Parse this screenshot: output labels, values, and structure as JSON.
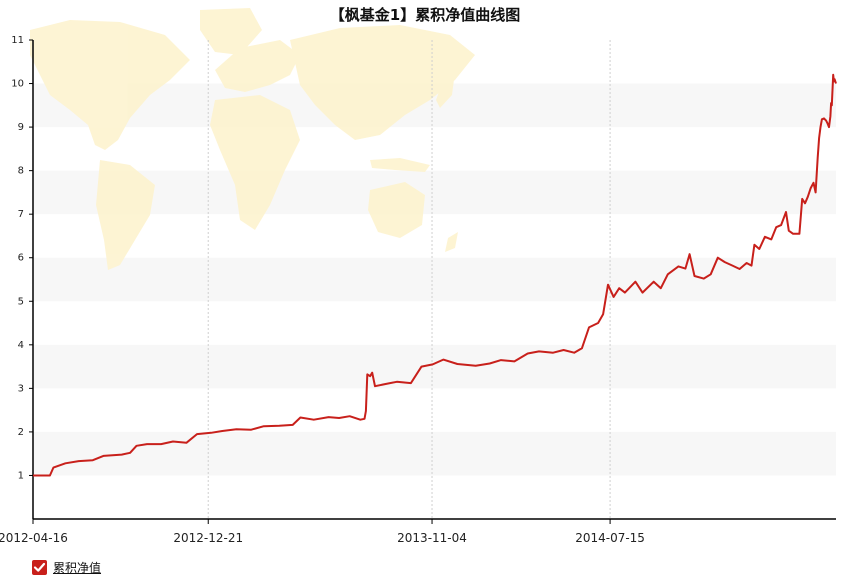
{
  "chart_data": {
    "type": "line",
    "title": "【枫基金1】累积净值曲线图",
    "xlabel": "",
    "ylabel": "",
    "ylim": [
      0,
      11
    ],
    "y_ticks": [
      1,
      2,
      3,
      4,
      5,
      6,
      7,
      8,
      9,
      10,
      11
    ],
    "x_ticks": [
      "2012-04-16",
      "2012-12-21",
      "2013-11-04",
      "2014-07-15"
    ],
    "x_range": [
      "2012-04-16",
      "2015-06-01"
    ],
    "grid": "alternating horizontal bands, dotted vertical lines",
    "legend": "bottom-left",
    "colors": {
      "series": "#c8201b",
      "band": "#f7f7f7",
      "axis": "#000000",
      "map": "#fdf3cf"
    },
    "background": "world-map",
    "series": [
      {
        "name": "累积净值",
        "points": [
          [
            "2012-04-16",
            1.0
          ],
          [
            "2012-05-10",
            1.0
          ],
          [
            "2012-05-15",
            1.18
          ],
          [
            "2012-06-01",
            1.28
          ],
          [
            "2012-06-20",
            1.33
          ],
          [
            "2012-07-10",
            1.35
          ],
          [
            "2012-07-25",
            1.45
          ],
          [
            "2012-08-20",
            1.48
          ],
          [
            "2012-09-01",
            1.52
          ],
          [
            "2012-09-10",
            1.68
          ],
          [
            "2012-09-25",
            1.72
          ],
          [
            "2012-10-15",
            1.72
          ],
          [
            "2012-11-01",
            1.78
          ],
          [
            "2012-11-20",
            1.75
          ],
          [
            "2012-12-05",
            1.95
          ],
          [
            "2012-12-25",
            1.98
          ],
          [
            "2013-01-10",
            2.02
          ],
          [
            "2013-01-30",
            2.06
          ],
          [
            "2013-02-20",
            2.05
          ],
          [
            "2013-03-10",
            2.13
          ],
          [
            "2013-04-01",
            2.14
          ],
          [
            "2013-04-20",
            2.16
          ],
          [
            "2013-05-01",
            2.33
          ],
          [
            "2013-05-20",
            2.28
          ],
          [
            "2013-06-10",
            2.34
          ],
          [
            "2013-06-25",
            2.32
          ],
          [
            "2013-07-10",
            2.36
          ],
          [
            "2013-07-25",
            2.28
          ],
          [
            "2013-07-31",
            2.3
          ],
          [
            "2013-08-02",
            2.48
          ],
          [
            "2013-08-04",
            3.32
          ],
          [
            "2013-08-08",
            3.28
          ],
          [
            "2013-08-11",
            3.36
          ],
          [
            "2013-08-15",
            3.05
          ],
          [
            "2013-08-30",
            3.1
          ],
          [
            "2013-09-15",
            3.15
          ],
          [
            "2013-10-05",
            3.12
          ],
          [
            "2013-10-20",
            3.5
          ],
          [
            "2013-11-05",
            3.55
          ],
          [
            "2013-11-20",
            3.66
          ],
          [
            "2013-12-10",
            3.56
          ],
          [
            "2014-01-05",
            3.52
          ],
          [
            "2014-01-25",
            3.57
          ],
          [
            "2014-02-10",
            3.65
          ],
          [
            "2014-03-01",
            3.62
          ],
          [
            "2014-03-20",
            3.8
          ],
          [
            "2014-04-05",
            3.85
          ],
          [
            "2014-04-25",
            3.82
          ],
          [
            "2014-05-10",
            3.88
          ],
          [
            "2014-05-25",
            3.82
          ],
          [
            "2014-06-05",
            3.92
          ],
          [
            "2014-06-15",
            4.4
          ],
          [
            "2014-06-28",
            4.5
          ],
          [
            "2014-07-05",
            4.7
          ],
          [
            "2014-07-12",
            5.38
          ],
          [
            "2014-07-20",
            5.1
          ],
          [
            "2014-07-28",
            5.3
          ],
          [
            "2014-08-05",
            5.2
          ],
          [
            "2014-08-20",
            5.45
          ],
          [
            "2014-08-30",
            5.2
          ],
          [
            "2014-09-15",
            5.45
          ],
          [
            "2014-09-25",
            5.3
          ],
          [
            "2014-10-05",
            5.62
          ],
          [
            "2014-10-20",
            5.8
          ],
          [
            "2014-10-30",
            5.75
          ],
          [
            "2014-11-05",
            6.08
          ],
          [
            "2014-11-12",
            5.58
          ],
          [
            "2014-11-25",
            5.52
          ],
          [
            "2014-12-05",
            5.62
          ],
          [
            "2014-12-15",
            6.0
          ],
          [
            "2014-12-25",
            5.9
          ],
          [
            "2015-01-05",
            5.82
          ],
          [
            "2015-01-15",
            5.74
          ],
          [
            "2015-01-25",
            5.88
          ],
          [
            "2015-02-01",
            5.82
          ],
          [
            "2015-02-05",
            6.3
          ],
          [
            "2015-02-12",
            6.2
          ],
          [
            "2015-02-20",
            6.48
          ],
          [
            "2015-03-01",
            6.42
          ],
          [
            "2015-03-08",
            6.7
          ],
          [
            "2015-03-15",
            6.75
          ],
          [
            "2015-03-22",
            7.05
          ],
          [
            "2015-03-26",
            6.62
          ],
          [
            "2015-04-01",
            6.55
          ],
          [
            "2015-04-10",
            6.55
          ],
          [
            "2015-04-14",
            7.35
          ],
          [
            "2015-04-18",
            7.25
          ],
          [
            "2015-04-22",
            7.4
          ],
          [
            "2015-04-26",
            7.6
          ],
          [
            "2015-04-30",
            7.72
          ],
          [
            "2015-05-03",
            7.5
          ],
          [
            "2015-05-06",
            8.3
          ],
          [
            "2015-05-08",
            8.75
          ],
          [
            "2015-05-10",
            9.0
          ],
          [
            "2015-05-12",
            9.18
          ],
          [
            "2015-05-15",
            9.2
          ],
          [
            "2015-05-18",
            9.15
          ],
          [
            "2015-05-20",
            9.08
          ],
          [
            "2015-05-22",
            9.0
          ],
          [
            "2015-05-24",
            9.25
          ],
          [
            "2015-05-25",
            9.55
          ],
          [
            "2015-05-26",
            9.5
          ],
          [
            "2015-05-27",
            9.85
          ],
          [
            "2015-05-28",
            10.2
          ],
          [
            "2015-05-29",
            10.05
          ],
          [
            "2015-05-30",
            10.1
          ],
          [
            "2015-06-01",
            10.0
          ]
        ]
      }
    ]
  }
}
